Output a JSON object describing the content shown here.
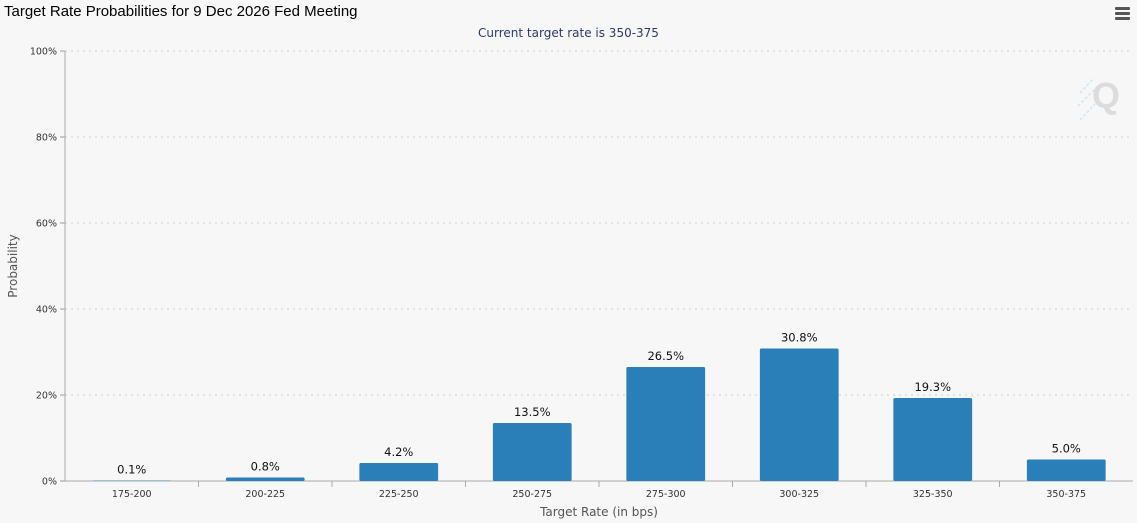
{
  "page": {
    "title": "Target Rate Probabilities for 9 Dec 2026 Fed Meeting",
    "menu_icon": "hamburger-menu-icon",
    "watermark_icon": "q-logo-icon"
  },
  "chart_data": {
    "type": "bar",
    "title": "Target Rate Probabilities for 9 Dec 2026 Fed Meeting",
    "subtitle": "Current target rate is 350-375",
    "xlabel": "Target Rate (in bps)",
    "ylabel": "Probability",
    "categories": [
      "175-200",
      "200-225",
      "225-250",
      "250-275",
      "275-300",
      "300-325",
      "325-350",
      "350-375"
    ],
    "values": [
      0.1,
      0.8,
      4.2,
      13.5,
      26.5,
      30.8,
      19.3,
      5.0
    ],
    "data_labels": [
      "0.1%",
      "0.8%",
      "4.2%",
      "13.5%",
      "26.5%",
      "30.8%",
      "19.3%",
      "5.0%"
    ],
    "ylim": [
      0,
      100
    ],
    "yticks": [
      0,
      20,
      40,
      60,
      80,
      100
    ],
    "ytick_labels": [
      "0%",
      "20%",
      "40%",
      "60%",
      "80%",
      "100%"
    ],
    "grid": true,
    "bar_color": "#2a7fb8",
    "legend": false
  }
}
